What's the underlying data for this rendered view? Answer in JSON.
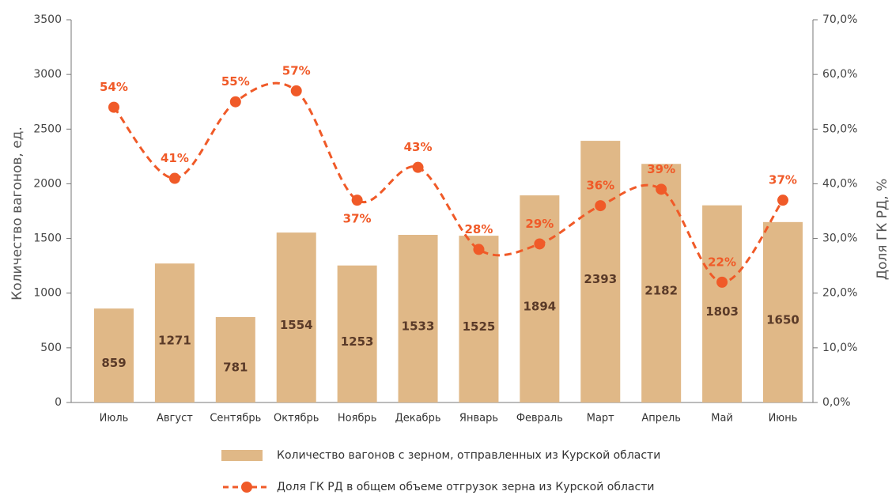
{
  "chart_data": {
    "type": "bar",
    "y_label": "Количество вагонов, ед.",
    "y2_label": "Доля ГК РД, %",
    "categories": [
      "Июль",
      "Август",
      "Сентябрь",
      "Октябрь",
      "Ноябрь",
      "Декабрь",
      "Январь",
      "Февраль",
      "Март",
      "Апрель",
      "Май",
      "Июнь"
    ],
    "series": [
      {
        "name": "Количество вагонов с зерном, отправленных из Курской области",
        "type": "bar",
        "color": "#e0b887",
        "values": [
          859,
          1271,
          781,
          1554,
          1253,
          1533,
          1525,
          1894,
          2393,
          2182,
          1803,
          1650
        ]
      },
      {
        "name": "Доля ГК РД в общем объеме отгрузок зерна из Курской области",
        "type": "line",
        "axis": "y2",
        "color": "#f05a28",
        "values": [
          54,
          41,
          55,
          57,
          37,
          43,
          28,
          29,
          36,
          39,
          22,
          37
        ],
        "value_labels": [
          "54%",
          "41%",
          "55%",
          "57%",
          "37%",
          "43%",
          "28%",
          "29%",
          "36%",
          "39%",
          "22%",
          "37%"
        ]
      }
    ],
    "ylim": [
      0,
      3500
    ],
    "yticks": [
      0,
      500,
      1000,
      1500,
      2000,
      2500,
      3000,
      3500
    ],
    "y2lim": [
      0,
      70
    ],
    "y2ticks": [
      {
        "value": 0,
        "label": "0,0%"
      },
      {
        "value": 10,
        "label": "10,0%"
      },
      {
        "value": 20,
        "label": "20,0%"
      },
      {
        "value": 30,
        "label": "30,0%"
      },
      {
        "value": 40,
        "label": "40,0%"
      },
      {
        "value": 50,
        "label": "50,0%"
      },
      {
        "value": 60,
        "label": "60,0%"
      },
      {
        "value": 70,
        "label": "70,0%"
      }
    ],
    "grid": false
  }
}
